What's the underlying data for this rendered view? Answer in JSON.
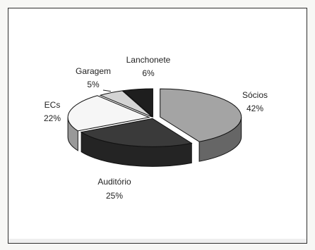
{
  "chart_data": {
    "type": "pie",
    "title": "",
    "categories": [
      "Sócios",
      "Auditório",
      "ECs",
      "Garagem",
      "Lanchonete"
    ],
    "values": [
      42,
      25,
      22,
      5,
      6
    ],
    "value_labels": [
      "42%",
      "25%",
      "22%",
      "5%",
      "6%"
    ],
    "colors": [
      "#a4a4a4",
      "#3a3a3a",
      "#f6f6f6",
      "#d4d4d4",
      "#1e1e1e"
    ],
    "style": "3d-exploded-pie",
    "legend": "none",
    "data_labels": "outside"
  }
}
